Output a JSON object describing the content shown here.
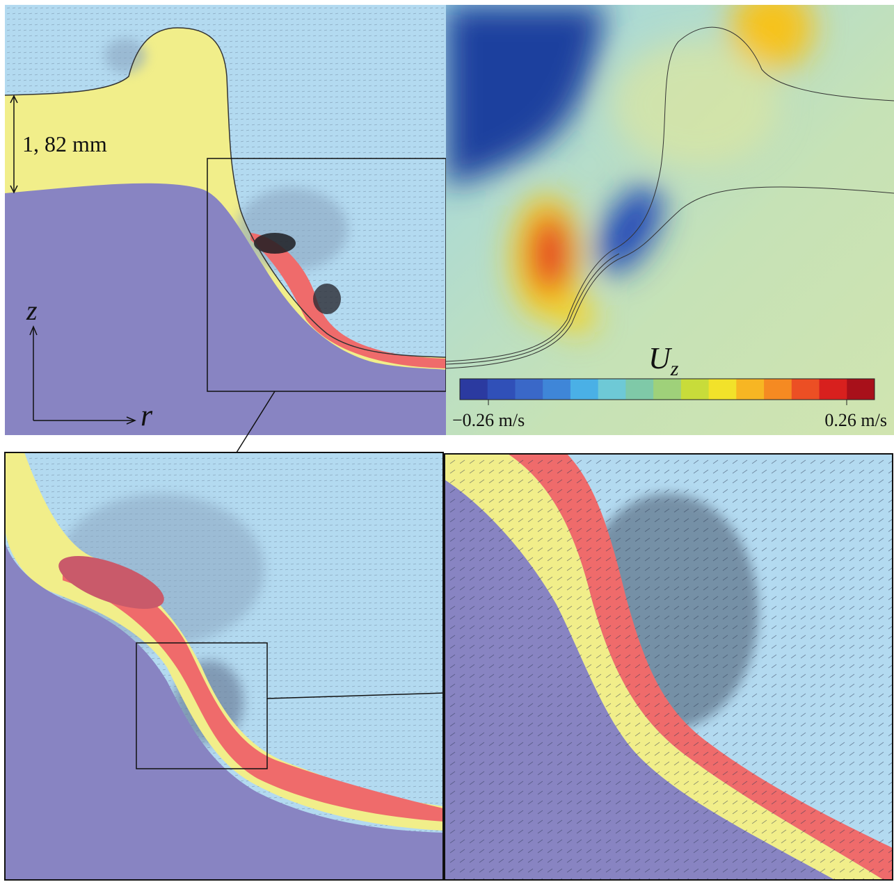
{
  "annotations": {
    "thickness": "1, 82 mm",
    "axis_z": "z",
    "axis_r": "r"
  },
  "colorbar": {
    "symbol": "U",
    "subscript": "z",
    "min_label": "−0.26 m/s",
    "max_label": "0.26 m/s"
  }
}
